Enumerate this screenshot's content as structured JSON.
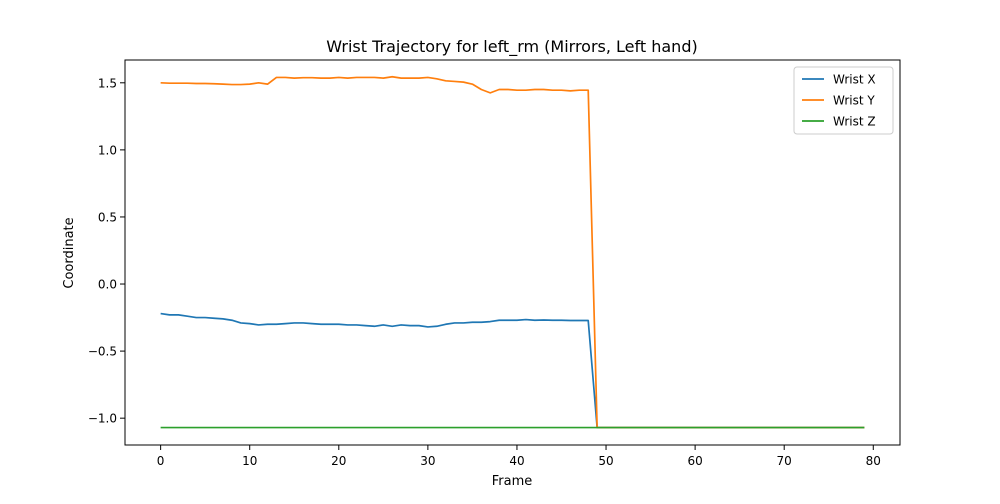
{
  "chart_data": {
    "type": "line",
    "title": "Wrist Trajectory for left_rm (Mirrors, Left hand)",
    "xlabel": "Frame",
    "ylabel": "Coordinate",
    "xlim": [
      -4,
      83
    ],
    "ylim": [
      -1.2,
      1.67
    ],
    "xticks": [
      0,
      10,
      20,
      30,
      40,
      50,
      60,
      70,
      80
    ],
    "yticks": [
      -1.0,
      -0.5,
      0.0,
      0.5,
      1.0,
      1.5
    ],
    "ytick_labels": [
      "−1.0",
      "−0.5",
      "0.0",
      "0.5",
      "1.0",
      "1.5"
    ],
    "legend_position": "top-right",
    "grid": false,
    "x": [
      0,
      1,
      2,
      3,
      4,
      5,
      6,
      7,
      8,
      9,
      10,
      11,
      12,
      13,
      14,
      15,
      16,
      17,
      18,
      19,
      20,
      21,
      22,
      23,
      24,
      25,
      26,
      27,
      28,
      29,
      30,
      31,
      32,
      33,
      34,
      35,
      36,
      37,
      38,
      39,
      40,
      41,
      42,
      43,
      44,
      45,
      46,
      47,
      48,
      49,
      50,
      51,
      52,
      53,
      54,
      55,
      56,
      57,
      58,
      59,
      60,
      61,
      62,
      63,
      64,
      65,
      66,
      67,
      68,
      69,
      70,
      71,
      72,
      73,
      74,
      75,
      76,
      77,
      78,
      79
    ],
    "series": [
      {
        "name": "Wrist X",
        "color": "#1f77b4",
        "values": [
          -0.22,
          -0.23,
          -0.23,
          -0.24,
          -0.25,
          -0.25,
          -0.255,
          -0.26,
          -0.27,
          -0.29,
          -0.295,
          -0.305,
          -0.3,
          -0.3,
          -0.295,
          -0.29,
          -0.29,
          -0.295,
          -0.3,
          -0.3,
          -0.3,
          -0.305,
          -0.305,
          -0.31,
          -0.315,
          -0.305,
          -0.315,
          -0.305,
          -0.31,
          -0.31,
          -0.32,
          -0.315,
          -0.3,
          -0.29,
          -0.29,
          -0.285,
          -0.285,
          -0.28,
          -0.27,
          -0.27,
          -0.27,
          -0.265,
          -0.27,
          -0.268,
          -0.27,
          -0.27,
          -0.272,
          -0.272,
          -0.272,
          -1.07,
          -1.07,
          -1.07,
          -1.07,
          -1.07,
          -1.07,
          -1.07,
          -1.07,
          -1.07,
          -1.07,
          -1.07,
          -1.07,
          -1.07,
          -1.07,
          -1.07,
          -1.07,
          -1.07,
          -1.07,
          -1.07,
          -1.07,
          -1.07,
          -1.07,
          -1.07,
          -1.07,
          -1.07,
          -1.07,
          -1.07,
          -1.07,
          -1.07,
          -1.07,
          -1.07
        ]
      },
      {
        "name": "Wrist Y",
        "color": "#ff7f0e",
        "values": [
          1.5,
          1.497,
          1.497,
          1.497,
          1.495,
          1.495,
          1.493,
          1.49,
          1.487,
          1.487,
          1.49,
          1.5,
          1.49,
          1.54,
          1.54,
          1.535,
          1.538,
          1.538,
          1.535,
          1.535,
          1.54,
          1.535,
          1.54,
          1.54,
          1.54,
          1.535,
          1.545,
          1.535,
          1.535,
          1.535,
          1.54,
          1.53,
          1.515,
          1.51,
          1.505,
          1.49,
          1.45,
          1.425,
          1.45,
          1.45,
          1.445,
          1.445,
          1.45,
          1.45,
          1.445,
          1.445,
          1.44,
          1.445,
          1.445,
          -1.07,
          -1.07,
          -1.07,
          -1.07,
          -1.07,
          -1.07,
          -1.07,
          -1.07,
          -1.07,
          -1.07,
          -1.07,
          -1.07,
          -1.07,
          -1.07,
          -1.07,
          -1.07,
          -1.07,
          -1.07,
          -1.07,
          -1.07,
          -1.07,
          -1.07,
          -1.07,
          -1.07,
          -1.07,
          -1.07,
          -1.07,
          -1.07,
          -1.07,
          -1.07,
          -1.07
        ]
      },
      {
        "name": "Wrist Z",
        "color": "#2ca02c",
        "values": [
          -1.07,
          -1.07,
          -1.07,
          -1.07,
          -1.07,
          -1.07,
          -1.07,
          -1.07,
          -1.07,
          -1.07,
          -1.07,
          -1.07,
          -1.07,
          -1.07,
          -1.07,
          -1.07,
          -1.07,
          -1.07,
          -1.07,
          -1.07,
          -1.07,
          -1.07,
          -1.07,
          -1.07,
          -1.07,
          -1.07,
          -1.07,
          -1.07,
          -1.07,
          -1.07,
          -1.07,
          -1.07,
          -1.07,
          -1.07,
          -1.07,
          -1.07,
          -1.07,
          -1.07,
          -1.07,
          -1.07,
          -1.07,
          -1.07,
          -1.07,
          -1.07,
          -1.07,
          -1.07,
          -1.07,
          -1.07,
          -1.07,
          -1.07,
          -1.07,
          -1.07,
          -1.07,
          -1.07,
          -1.07,
          -1.07,
          -1.07,
          -1.07,
          -1.07,
          -1.07,
          -1.07,
          -1.07,
          -1.07,
          -1.07,
          -1.07,
          -1.07,
          -1.07,
          -1.07,
          -1.07,
          -1.07,
          -1.07,
          -1.07,
          -1.07,
          -1.07,
          -1.07,
          -1.07,
          -1.07,
          -1.07,
          -1.07,
          -1.07
        ]
      }
    ]
  }
}
